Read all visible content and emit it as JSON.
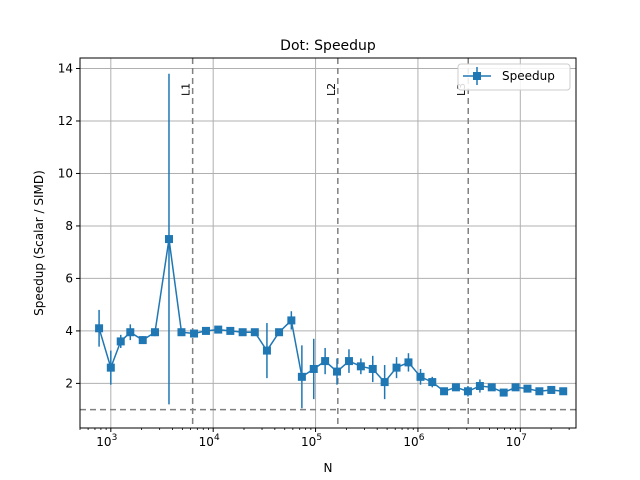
{
  "chart_data": {
    "type": "line",
    "title": "Dot: Speedup",
    "xlabel": "N",
    "ylabel": "Speedup (Scalar / SIMD)",
    "xscale": "log",
    "xlim": [
      500,
      35000000
    ],
    "ylim": [
      0.3,
      14.4
    ],
    "grid": true,
    "legend_position": "top-right",
    "colors": {
      "series": "#1f77b4",
      "reference": "#808080",
      "grid": "#b0b0b0"
    },
    "yticks": [
      {
        "value": 2,
        "label": "2"
      },
      {
        "value": 4,
        "label": "4"
      },
      {
        "value": 6,
        "label": "6"
      },
      {
        "value": 8,
        "label": "8"
      },
      {
        "value": 10,
        "label": "10"
      },
      {
        "value": 12,
        "label": "12"
      },
      {
        "value": 14,
        "label": "14"
      }
    ],
    "xticks": [
      {
        "value": 1000,
        "base": "10",
        "exp": "3"
      },
      {
        "value": 10000,
        "base": "10",
        "exp": "4"
      },
      {
        "value": 100000,
        "base": "10",
        "exp": "5"
      },
      {
        "value": 1000000,
        "base": "10",
        "exp": "6"
      },
      {
        "value": 10000000,
        "base": "10",
        "exp": "7"
      }
    ],
    "hline": 1.0,
    "vlines": [
      {
        "label": "L1",
        "x": 6300
      },
      {
        "label": "L2",
        "x": 165000
      },
      {
        "label": "L3",
        "x": 3100000
      }
    ],
    "series": [
      {
        "name": "Speedup",
        "points": [
          {
            "x": 768,
            "y": 4.1,
            "err": 0.7
          },
          {
            "x": 1000,
            "y": 2.6,
            "err": 0.65
          },
          {
            "x": 1250,
            "y": 3.6,
            "err": 0.25
          },
          {
            "x": 1550,
            "y": 3.95,
            "err": 0.3
          },
          {
            "x": 2050,
            "y": 3.65,
            "err": 0.15
          },
          {
            "x": 2700,
            "y": 3.95,
            "err": 0.15
          },
          {
            "x": 3700,
            "y": 7.5,
            "err": 6.3
          },
          {
            "x": 4900,
            "y": 3.95,
            "err": 0.1
          },
          {
            "x": 6500,
            "y": 3.9,
            "err": 0.1
          },
          {
            "x": 8500,
            "y": 4.0,
            "err": 0.1
          },
          {
            "x": 11200,
            "y": 4.05,
            "err": 0.1
          },
          {
            "x": 14700,
            "y": 4.0,
            "err": 0.1
          },
          {
            "x": 19400,
            "y": 3.95,
            "err": 0.1
          },
          {
            "x": 25500,
            "y": 3.95,
            "err": 0.1
          },
          {
            "x": 33500,
            "y": 3.25,
            "err": 1.05
          },
          {
            "x": 44000,
            "y": 3.95,
            "err": 0.1
          },
          {
            "x": 58000,
            "y": 4.4,
            "err": 0.35
          },
          {
            "x": 73500,
            "y": 2.25,
            "err": 1.2
          },
          {
            "x": 96000,
            "y": 2.55,
            "err": 1.15
          },
          {
            "x": 124000,
            "y": 2.85,
            "err": 0.5
          },
          {
            "x": 162000,
            "y": 2.45,
            "err": 0.5
          },
          {
            "x": 212000,
            "y": 2.85,
            "err": 0.45
          },
          {
            "x": 277000,
            "y": 2.65,
            "err": 0.3
          },
          {
            "x": 362000,
            "y": 2.55,
            "err": 0.5
          },
          {
            "x": 473000,
            "y": 2.05,
            "err": 0.65
          },
          {
            "x": 618000,
            "y": 2.6,
            "err": 0.4
          },
          {
            "x": 808000,
            "y": 2.8,
            "err": 0.35
          },
          {
            "x": 1060000,
            "y": 2.25,
            "err": 0.3
          },
          {
            "x": 1380000,
            "y": 2.05,
            "err": 0.2
          },
          {
            "x": 1800000,
            "y": 1.7,
            "err": 0.1
          },
          {
            "x": 2350000,
            "y": 1.85,
            "err": 0.1
          },
          {
            "x": 3080000,
            "y": 1.7,
            "err": 0.2
          },
          {
            "x": 4030000,
            "y": 1.9,
            "err": 0.25
          },
          {
            "x": 5260000,
            "y": 1.85,
            "err": 0.1
          },
          {
            "x": 6880000,
            "y": 1.65,
            "err": 0.1
          },
          {
            "x": 8990000,
            "y": 1.85,
            "err": 0.1
          },
          {
            "x": 11750000,
            "y": 1.8,
            "err": 0.1
          },
          {
            "x": 15360000,
            "y": 1.7,
            "err": 0.1
          },
          {
            "x": 20080000,
            "y": 1.75,
            "err": 0.1
          },
          {
            "x": 26250000,
            "y": 1.7,
            "err": 0.1
          }
        ]
      }
    ]
  }
}
